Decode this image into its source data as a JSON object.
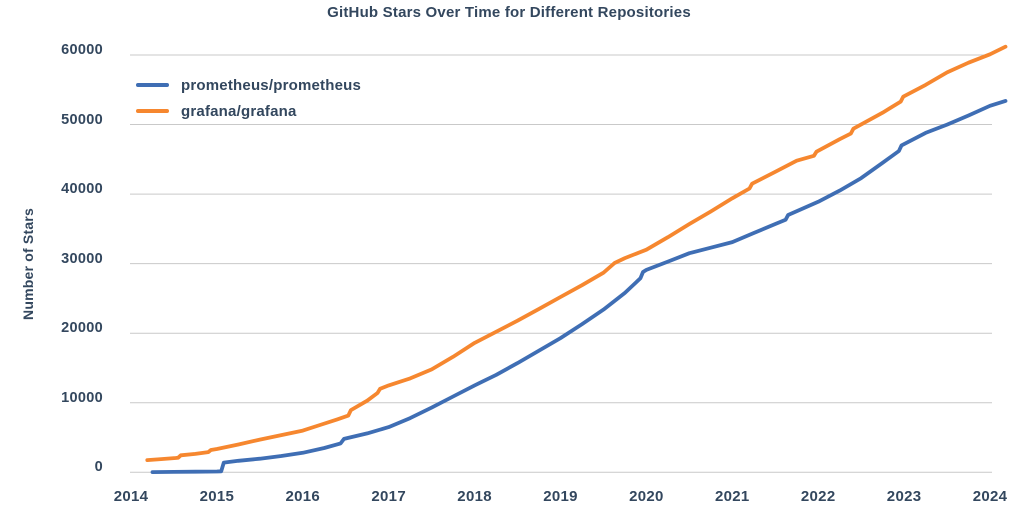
{
  "chart_data": {
    "type": "line",
    "title": "GitHub Stars Over Time for Different Repositories",
    "xlabel": "",
    "ylabel": "Number of Stars",
    "x_ticks": [
      2014,
      2015,
      2016,
      2017,
      2018,
      2019,
      2020,
      2021,
      2022,
      2023,
      2024
    ],
    "y_ticks": [
      0,
      10000,
      20000,
      30000,
      40000,
      50000,
      60000
    ],
    "x_range": [
      2014,
      2024.2
    ],
    "ylim": [
      0,
      62000
    ],
    "grid": "horizontal",
    "legend_position": "upper-left-inside",
    "colors": {
      "grid": "#c9c9c9",
      "text": "#33475e",
      "background": "#ffffff"
    },
    "series": [
      {
        "name": "prometheus/prometheus",
        "color": "#3f6eb4",
        "points": [
          [
            2014.25,
            30
          ],
          [
            2014.5,
            60
          ],
          [
            2014.75,
            90
          ],
          [
            2015.0,
            120
          ],
          [
            2015.05,
            140
          ],
          [
            2015.08,
            1400
          ],
          [
            2015.25,
            1650
          ],
          [
            2015.5,
            1950
          ],
          [
            2015.75,
            2350
          ],
          [
            2016.0,
            2800
          ],
          [
            2016.25,
            3500
          ],
          [
            2016.44,
            4150
          ],
          [
            2016.48,
            4800
          ],
          [
            2016.75,
            5600
          ],
          [
            2017.0,
            6500
          ],
          [
            2017.25,
            7800
          ],
          [
            2017.5,
            9300
          ],
          [
            2017.75,
            10900
          ],
          [
            2018.0,
            12500
          ],
          [
            2018.25,
            14000
          ],
          [
            2018.5,
            15700
          ],
          [
            2018.75,
            17500
          ],
          [
            2019.0,
            19300
          ],
          [
            2019.25,
            21300
          ],
          [
            2019.5,
            23400
          ],
          [
            2019.75,
            25800
          ],
          [
            2019.93,
            27900
          ],
          [
            2019.96,
            28800
          ],
          [
            2020.0,
            29100
          ],
          [
            2020.25,
            30300
          ],
          [
            2020.5,
            31500
          ],
          [
            2020.75,
            32300
          ],
          [
            2021.0,
            33100
          ],
          [
            2021.25,
            34400
          ],
          [
            2021.5,
            35700
          ],
          [
            2021.62,
            36300
          ],
          [
            2021.65,
            37000
          ],
          [
            2022.0,
            38900
          ],
          [
            2022.25,
            40500
          ],
          [
            2022.5,
            42300
          ],
          [
            2022.75,
            44500
          ],
          [
            2022.94,
            46200
          ],
          [
            2022.97,
            47000
          ],
          [
            2023.25,
            48800
          ],
          [
            2023.5,
            50000
          ],
          [
            2023.75,
            51300
          ],
          [
            2024.0,
            52700
          ],
          [
            2024.18,
            53400
          ]
        ]
      },
      {
        "name": "grafana/grafana",
        "color": "#f6872f",
        "points": [
          [
            2014.19,
            1750
          ],
          [
            2014.35,
            1900
          ],
          [
            2014.52,
            2050
          ],
          [
            2014.55,
            2100
          ],
          [
            2014.58,
            2450
          ],
          [
            2014.75,
            2650
          ],
          [
            2014.9,
            2900
          ],
          [
            2014.93,
            3200
          ],
          [
            2015.0,
            3350
          ],
          [
            2015.25,
            4000
          ],
          [
            2015.5,
            4700
          ],
          [
            2015.75,
            5350
          ],
          [
            2016.0,
            6000
          ],
          [
            2016.2,
            6800
          ],
          [
            2016.4,
            7600
          ],
          [
            2016.53,
            8150
          ],
          [
            2016.56,
            8950
          ],
          [
            2016.75,
            10300
          ],
          [
            2016.87,
            11400
          ],
          [
            2016.9,
            12000
          ],
          [
            2017.0,
            12500
          ],
          [
            2017.25,
            13500
          ],
          [
            2017.5,
            14800
          ],
          [
            2017.75,
            16600
          ],
          [
            2018.0,
            18600
          ],
          [
            2018.25,
            20200
          ],
          [
            2018.5,
            21800
          ],
          [
            2018.75,
            23500
          ],
          [
            2019.0,
            25200
          ],
          [
            2019.25,
            26900
          ],
          [
            2019.5,
            28700
          ],
          [
            2019.63,
            30100
          ],
          [
            2019.75,
            30800
          ],
          [
            2020.0,
            32000
          ],
          [
            2020.25,
            33800
          ],
          [
            2020.5,
            35700
          ],
          [
            2020.75,
            37500
          ],
          [
            2021.0,
            39400
          ],
          [
            2021.2,
            40800
          ],
          [
            2021.23,
            41500
          ],
          [
            2021.5,
            43200
          ],
          [
            2021.75,
            44800
          ],
          [
            2021.95,
            45500
          ],
          [
            2021.98,
            46100
          ],
          [
            2022.25,
            47900
          ],
          [
            2022.38,
            48700
          ],
          [
            2022.41,
            49400
          ],
          [
            2022.75,
            51700
          ],
          [
            2022.96,
            53300
          ],
          [
            2022.99,
            54000
          ],
          [
            2023.25,
            55700
          ],
          [
            2023.5,
            57500
          ],
          [
            2023.75,
            58900
          ],
          [
            2024.0,
            60100
          ],
          [
            2024.18,
            61200
          ]
        ]
      }
    ]
  }
}
